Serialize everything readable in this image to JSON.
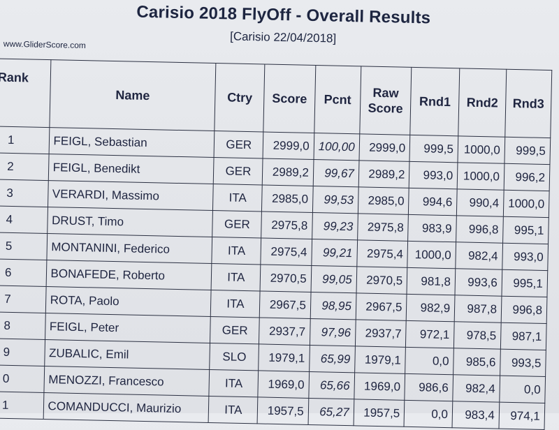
{
  "header": {
    "title": "Carisio 2018 FlyOff - Overall Results",
    "subtitle": "[Carisio 22/04/2018]",
    "site": "www.GliderScore.com"
  },
  "columns": {
    "rank": "Rank",
    "name": "Name",
    "ctry": "Ctry",
    "score": "Score",
    "pcnt": "Pcnt",
    "raw_line1": "Raw",
    "raw_line2": "Score",
    "rnd1": "Rnd1",
    "rnd2": "Rnd2",
    "rnd3": "Rnd3"
  },
  "rows": [
    {
      "rank": "1",
      "name": "FEIGL, Sebastian",
      "ctry": "GER",
      "score": "2999,0",
      "pcnt": "100,00",
      "raw": "2999,0",
      "rnd1": "999,5",
      "rnd2": "1000,0",
      "rnd3": "999,5"
    },
    {
      "rank": "2",
      "name": "FEIGL, Benedikt",
      "ctry": "GER",
      "score": "2989,2",
      "pcnt": "99,67",
      "raw": "2989,2",
      "rnd1": "993,0",
      "rnd2": "1000,0",
      "rnd3": "996,2"
    },
    {
      "rank": "3",
      "name": "VERARDI, Massimo",
      "ctry": "ITA",
      "score": "2985,0",
      "pcnt": "99,53",
      "raw": "2985,0",
      "rnd1": "994,6",
      "rnd2": "990,4",
      "rnd3": "1000,0"
    },
    {
      "rank": "4",
      "name": "DRUST, Timo",
      "ctry": "GER",
      "score": "2975,8",
      "pcnt": "99,23",
      "raw": "2975,8",
      "rnd1": "983,9",
      "rnd2": "996,8",
      "rnd3": "995,1"
    },
    {
      "rank": "5",
      "name": "MONTANINI, Federico",
      "ctry": "ITA",
      "score": "2975,4",
      "pcnt": "99,21",
      "raw": "2975,4",
      "rnd1": "1000,0",
      "rnd2": "982,4",
      "rnd3": "993,0"
    },
    {
      "rank": "6",
      "name": "BONAFEDE, Roberto",
      "ctry": "ITA",
      "score": "2970,5",
      "pcnt": "99,05",
      "raw": "2970,5",
      "rnd1": "981,8",
      "rnd2": "993,6",
      "rnd3": "995,1"
    },
    {
      "rank": "7",
      "name": "ROTA, Paolo",
      "ctry": "ITA",
      "score": "2967,5",
      "pcnt": "98,95",
      "raw": "2967,5",
      "rnd1": "982,9",
      "rnd2": "987,8",
      "rnd3": "996,8"
    },
    {
      "rank": "8",
      "name": "FEIGL, Peter",
      "ctry": "GER",
      "score": "2937,7",
      "pcnt": "97,96",
      "raw": "2937,7",
      "rnd1": "972,1",
      "rnd2": "978,5",
      "rnd3": "987,1"
    },
    {
      "rank": "9",
      "name": "ZUBALIC, Emil",
      "ctry": "SLO",
      "score": "1979,1",
      "pcnt": "65,99",
      "raw": "1979,1",
      "rnd1": "0,0",
      "rnd2": "985,6",
      "rnd3": "993,5"
    },
    {
      "rank": "0",
      "name": "MENOZZI, Francesco",
      "ctry": "ITA",
      "score": "1969,0",
      "pcnt": "65,66",
      "raw": "1969,0",
      "rnd1": "986,6",
      "rnd2": "982,4",
      "rnd3": "0,0"
    },
    {
      "rank": "1",
      "name": "COMANDUCCI, Maurizio",
      "ctry": "ITA",
      "score": "1957,5",
      "pcnt": "65,27",
      "raw": "1957,5",
      "rnd1": "0,0",
      "rnd2": "983,4",
      "rnd3": "974,1"
    }
  ]
}
